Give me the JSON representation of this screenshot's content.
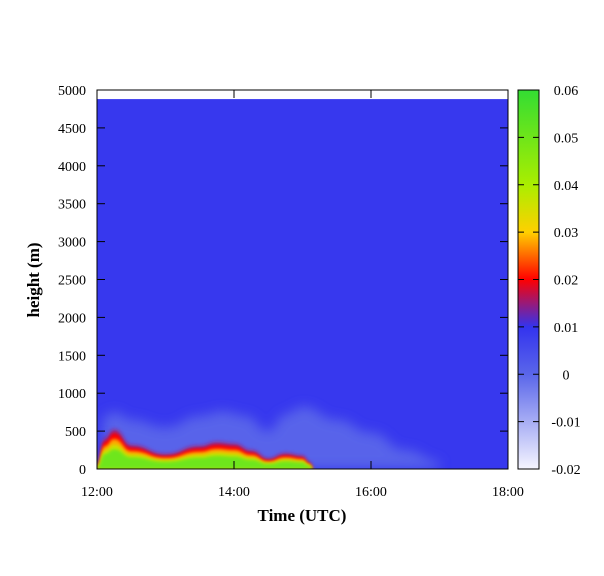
{
  "chart_data": {
    "type": "heatmap",
    "title": "",
    "xlabel": "Time (UTC)",
    "ylabel": "height (m)",
    "x_ticks": [
      "12:00",
      "14:00",
      "16:00",
      "18:00"
    ],
    "x_range": [
      "12:00",
      "18:00"
    ],
    "y_ticks": [
      0,
      500,
      1000,
      1500,
      2000,
      2500,
      3000,
      3500,
      4000,
      4500,
      5000
    ],
    "y_range": [
      0,
      5000
    ],
    "data_top_height": 4880,
    "colorbar": {
      "range": [
        -0.02,
        0.06
      ],
      "ticks": [
        "0.06",
        "0.05",
        "0.04",
        "0.03",
        "0.02",
        "0.01",
        "0",
        "-0.01",
        "-0.02"
      ],
      "colors": [
        "#f5f5ff",
        "#5a66ea",
        "#3333ee",
        "#ff0000",
        "#ffd000",
        "#aaee00",
        "#33dd33"
      ]
    },
    "background_value": 0.009,
    "features": [
      {
        "name": "lower layer",
        "value": 0.05,
        "time": [
          "12:00",
          "12:07",
          "12:15",
          "12:30",
          "13:00",
          "13:30",
          "13:45",
          "14:00",
          "14:15",
          "14:30",
          "14:45",
          "15:00",
          "15:05",
          "15:10"
        ],
        "top_height": [
          50,
          400,
          520,
          310,
          190,
          300,
          350,
          330,
          240,
          130,
          200,
          170,
          90,
          0
        ]
      },
      {
        "name": "upper band",
        "value": 0.0,
        "time": [
          "12:05",
          "12:15",
          "12:30",
          "13:00",
          "13:30",
          "13:50",
          "14:10",
          "14:30",
          "14:45",
          "15:00",
          "15:30",
          "16:00",
          "16:30",
          "17:00"
        ],
        "top_height": [
          680,
          750,
          650,
          550,
          700,
          760,
          700,
          500,
          720,
          820,
          650,
          480,
          250,
          100
        ]
      }
    ]
  }
}
